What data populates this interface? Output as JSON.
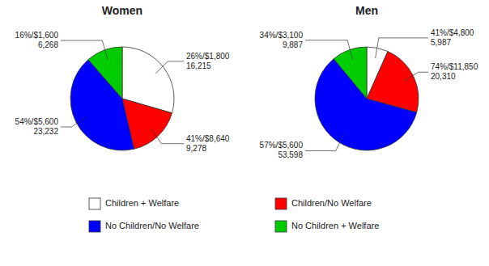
{
  "chart_data": [
    {
      "type": "pie",
      "title": "Women",
      "categories": [
        "Children + Welfare",
        "Children/No Welfare",
        "No Children/No Welfare",
        "No Children + Welfare"
      ],
      "values": [
        16215,
        9278,
        23232,
        6268
      ],
      "colors": [
        "#ffffff",
        "#ff0000",
        "#0000ff",
        "#00cc00"
      ],
      "annotations": [
        "26%/$1,800\n16,215",
        "41%/$8,640\n9,278",
        "54%/$5,600\n23,232",
        "16%/$1,600\n6,268"
      ]
    },
    {
      "type": "pie",
      "title": "Men",
      "categories": [
        "Children + Welfare",
        "Children/No Welfare",
        "No Children/No Welfare",
        "No Children + Welfare"
      ],
      "values": [
        5987,
        20310,
        53598,
        9887
      ],
      "colors": [
        "#ffffff",
        "#ff0000",
        "#0000ff",
        "#00cc00"
      ],
      "annotations": [
        "41%/$4,800\n5,987",
        "74%/$11,850\n20,310",
        "57%/$5,600\n53,598",
        "34%/$3,100\n9,887"
      ]
    }
  ]
}
